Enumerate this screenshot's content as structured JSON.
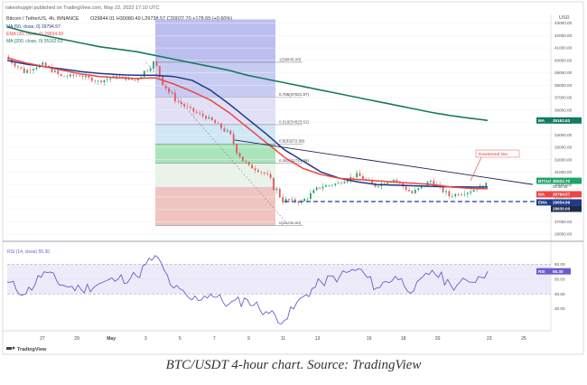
{
  "header": {
    "published_line": "rakeshupgiri published on TradingView.com, May 22, 2022 17:10 UTC",
    "symbol_line": "Bitcoin / TetherUS, 4h, BINANCE",
    "ohlc": "O29844.01 H30080.49 L29738.57 C30022.70 +178.69 (+0.60%)",
    "ma50_legend": "MA (50, close, 0)  29794.57",
    "ema20_legend": "EMA (20, close, 0)  29654.99",
    "ma200_legend": "MA (200, close, 0)  35162.63",
    "currency": "USD"
  },
  "price_axis": {
    "ticks": [
      "43000.00",
      "42000.00",
      "41000.00",
      "40000.00",
      "39000.00",
      "38000.00",
      "37000.00",
      "36000.00",
      "35000.00",
      "34000.00",
      "33000.00",
      "32000.00",
      "31000.00",
      "30000.00",
      "29000.00",
      "28000.00",
      "27000.00",
      "26000.00"
    ],
    "ma200_tag": {
      "label": "MA",
      "value": "35162.63"
    },
    "price_tag": {
      "label": "BTCUSDT",
      "value": "30022.70",
      "sub": "02:49:49"
    },
    "ma50_tag": {
      "label": "MA",
      "value": "29794.57"
    },
    "ema_tag": {
      "label": "EMA",
      "value": "29654.99"
    },
    "support_tag": {
      "value": "28630.00"
    }
  },
  "rsi_axis": {
    "ticks": [
      "60.00",
      "50.00",
      "40.00",
      "30.00"
    ],
    "legend": "RSI (14, close)  55.30",
    "tag": {
      "label": "RSI",
      "value": "55.30"
    }
  },
  "time_axis": {
    "labels": [
      "27",
      "29",
      "May",
      "3",
      "5",
      "7",
      "9",
      "11",
      "13",
      "16",
      "18",
      "20",
      "23",
      "25"
    ]
  },
  "fib_labels": [
    "1(39845.00)",
    "0.786(37021.97)",
    "0.618(34823.61)",
    "0.5(33272.50)",
    "0.382(31721.39)",
    "0(26700.00)"
  ],
  "annotation": "Downtrend line",
  "branding": "TradingView",
  "caption": "BTC/USDT 4-hour chart. Source: TradingView",
  "colors": {
    "ema20": "#ef4444",
    "ma50": "#1e3a8a",
    "ma200": "#147a62",
    "bull": "#22a36a",
    "bear": "#e05a5a",
    "support": "#1f3aa6",
    "rsi": "#6b5ccd"
  },
  "chart_data": [
    {
      "type": "line",
      "ylabel": "",
      "ylim": [
        25500,
        43700
      ],
      "x": [
        "Apr 26",
        "Apr 27",
        "Apr 28",
        "Apr 29",
        "Apr 30",
        "May 1",
        "May 2",
        "May 3",
        "May 4",
        "May 5",
        "May 6",
        "May 7",
        "May 8",
        "May 9",
        "May 10",
        "May 11",
        "May 12",
        "May 13",
        "May 14",
        "May 15",
        "May 16",
        "May 17",
        "May 18",
        "May 19",
        "May 20",
        "May 21",
        "May 22"
      ],
      "series": [
        {
          "name": "Price",
          "values": [
            40300,
            39100,
            39700,
            38700,
            38800,
            38300,
            38700,
            38400,
            39800,
            37000,
            36000,
            35300,
            34200,
            31600,
            30900,
            28800,
            28600,
            29800,
            30100,
            30800,
            29900,
            30400,
            29300,
            30300,
            29100,
            29400,
            30022
          ]
        },
        {
          "name": "EMA (20, close, 0)",
          "values": [
            40200,
            39800,
            39500,
            39200,
            38900,
            38700,
            38600,
            38550,
            38600,
            38100,
            37500,
            36800,
            35800,
            34600,
            33400,
            32200,
            31300,
            30800,
            30500,
            30400,
            30300,
            30200,
            30100,
            30000,
            29800,
            29700,
            29655
          ]
        },
        {
          "name": "MA (50, close, 0)",
          "values": [
            40000,
            39700,
            39500,
            39300,
            39100,
            38950,
            38850,
            38800,
            38800,
            38700,
            38400,
            37600,
            36500,
            35300,
            34100,
            32800,
            31900,
            31000,
            30500,
            30200,
            30000,
            29950,
            29900,
            29850,
            29820,
            29800,
            29795
          ]
        },
        {
          "name": "MA (200, close, 0)",
          "values": [
            42700,
            42300,
            42000,
            41700,
            41400,
            41100,
            40900,
            40700,
            40400,
            40100,
            39800,
            39500,
            39200,
            38800,
            38500,
            38200,
            37900,
            37600,
            37300,
            37000,
            36700,
            36400,
            36100,
            35800,
            35550,
            35350,
            35163
          ]
        }
      ],
      "horizontal_lines": [
        {
          "value": 28630
        }
      ],
      "fibonacci": [
        {
          "level": "1",
          "price": 39845
        },
        {
          "level": "0.786",
          "price": 37021.97
        },
        {
          "level": "0.618",
          "price": 34823.61
        },
        {
          "level": "0.5",
          "price": 33272.5
        },
        {
          "level": "0.382",
          "price": 31721.39
        },
        {
          "level": "0",
          "price": 26700
        }
      ],
      "trendline": {
        "from": {
          "x": "May 11",
          "price": 33000
        },
        "to": {
          "x": "May 22",
          "price": 30150
        }
      }
    },
    {
      "type": "line",
      "ylim": [
        15,
        75
      ],
      "x": [
        "Apr 26",
        "Apr 27",
        "Apr 28",
        "Apr 29",
        "Apr 30",
        "May 1",
        "May 2",
        "May 3",
        "May 4",
        "May 5",
        "May 6",
        "May 7",
        "May 8",
        "May 9",
        "May 10",
        "May 11",
        "May 12",
        "May 13",
        "May 14",
        "May 15",
        "May 16",
        "May 17",
        "May 18",
        "May 19",
        "May 20",
        "May 21",
        "May 22"
      ],
      "series": [
        {
          "name": "RSI (14, close)",
          "values": [
            48,
            40,
            55,
            46,
            43,
            47,
            50,
            52,
            66,
            44,
            36,
            40,
            33,
            36,
            28,
            22,
            38,
            48,
            52,
            57,
            44,
            52,
            42,
            56,
            46,
            48,
            55.3
          ]
        }
      ],
      "horizontal_lines": [
        {
          "value": 60
        },
        {
          "value": 40
        }
      ]
    }
  ]
}
